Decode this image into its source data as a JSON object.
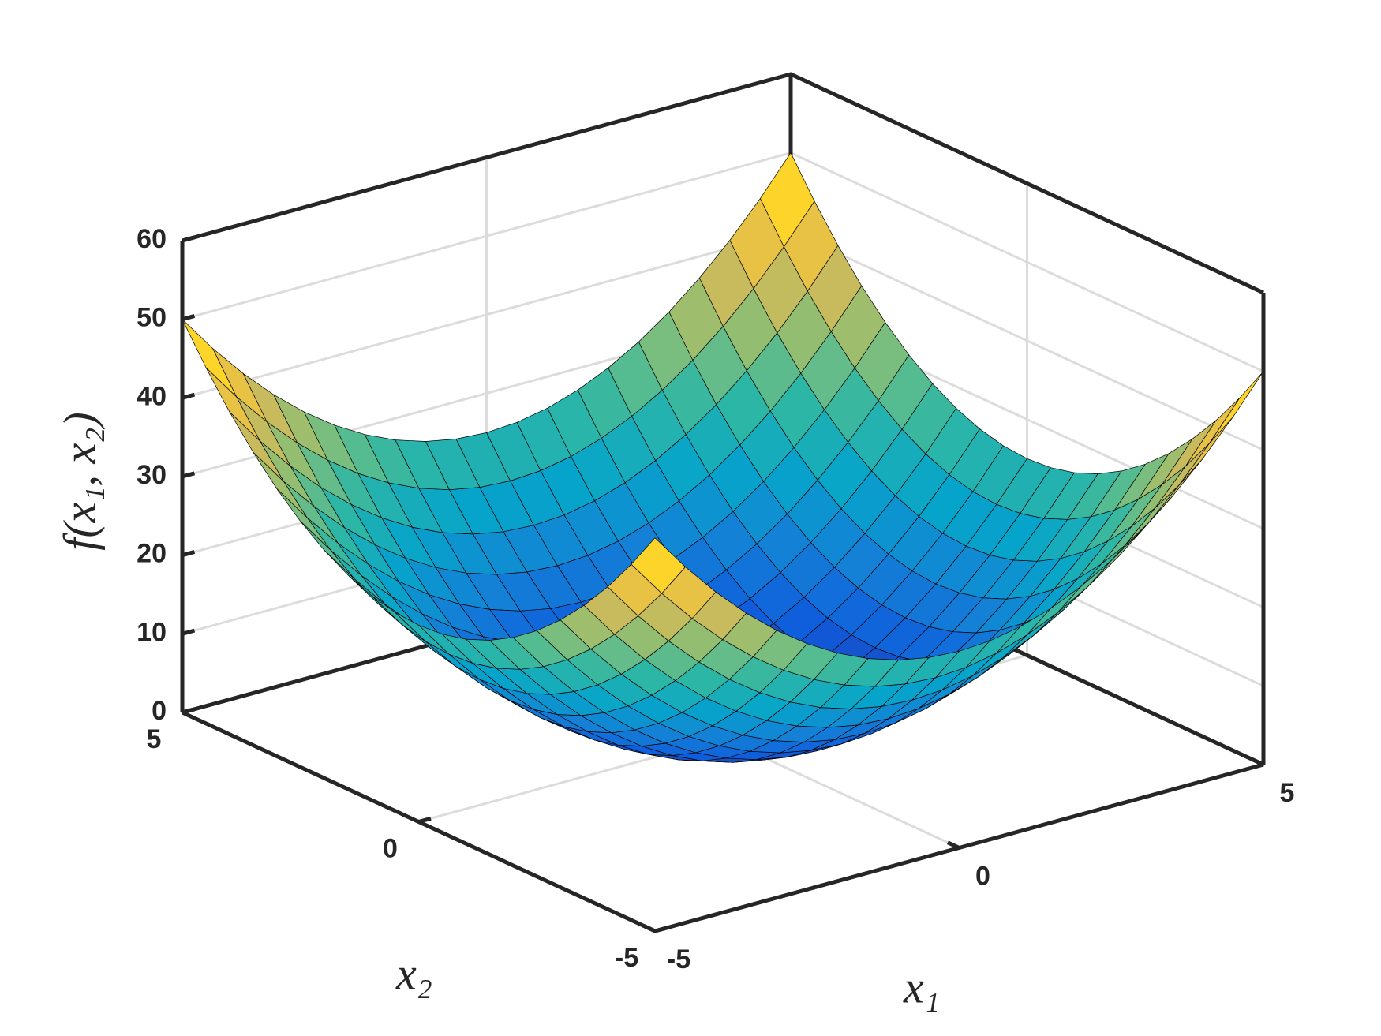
{
  "chart_data": {
    "type": "surface",
    "xlabel": "x₁",
    "ylabel": "x₂",
    "zlabel": "f(x₁, x₂)",
    "x": [
      -5,
      -4.5,
      -4,
      -3.5,
      -3,
      -2.5,
      -2,
      -1.5,
      -1,
      -0.5,
      0,
      0.5,
      1,
      1.5,
      2,
      2.5,
      3,
      3.5,
      4,
      4.5,
      5
    ],
    "y": [
      -5,
      -4.5,
      -4,
      -3.5,
      -3,
      -2.5,
      -2,
      -1.5,
      -1,
      -0.5,
      0,
      0.5,
      1,
      1.5,
      2,
      2.5,
      3,
      3.5,
      4,
      4.5,
      5
    ],
    "z": [
      [
        50,
        45.25,
        41,
        37.25,
        34,
        31.25,
        29,
        27.25,
        26,
        25.25,
        25,
        25.25,
        26,
        27.25,
        29,
        31.25,
        34,
        37.25,
        41,
        45.25,
        50
      ],
      [
        45.25,
        40.5,
        36.25,
        32.5,
        29.25,
        26.5,
        24.25,
        22.5,
        21.25,
        20.5,
        20.25,
        20.5,
        21.25,
        22.5,
        24.25,
        26.5,
        29.25,
        32.5,
        36.25,
        40.5,
        45.25
      ],
      [
        41,
        36.25,
        32,
        28.25,
        25,
        22.25,
        20,
        18.25,
        17,
        16.25,
        16,
        16.25,
        17,
        18.25,
        20,
        22.25,
        25,
        28.25,
        32,
        36.25,
        41
      ],
      [
        37.25,
        32.5,
        28.25,
        24.5,
        21.25,
        18.5,
        16.25,
        14.5,
        13.25,
        12.5,
        12.25,
        12.5,
        13.25,
        14.5,
        16.25,
        18.5,
        21.25,
        24.5,
        28.25,
        32.5,
        37.25
      ],
      [
        34,
        29.25,
        25,
        21.25,
        18,
        15.25,
        13,
        11.25,
        10,
        9.25,
        9,
        9.25,
        10,
        11.25,
        13,
        15.25,
        18,
        21.25,
        25,
        29.25,
        34
      ],
      [
        31.25,
        26.5,
        22.25,
        18.5,
        15.25,
        12.5,
        10.25,
        8.5,
        7.25,
        6.5,
        6.25,
        6.5,
        7.25,
        8.5,
        10.25,
        12.5,
        15.25,
        18.5,
        22.25,
        26.5,
        31.25
      ],
      [
        29,
        24.25,
        20,
        16.25,
        13,
        10.25,
        8,
        6.25,
        5,
        4.25,
        4,
        4.25,
        5,
        6.25,
        8,
        10.25,
        13,
        16.25,
        20,
        24.25,
        29
      ],
      [
        27.25,
        22.5,
        18.25,
        14.5,
        11.25,
        8.5,
        6.25,
        4.5,
        3.25,
        2.5,
        2.25,
        2.5,
        3.25,
        4.5,
        6.25,
        8.5,
        11.25,
        14.5,
        18.25,
        22.5,
        27.25
      ],
      [
        26,
        21.25,
        17,
        13.25,
        10,
        7.25,
        5,
        3.25,
        2,
        1.25,
        1,
        1.25,
        2,
        3.25,
        5,
        7.25,
        10,
        13.25,
        17,
        21.25,
        26
      ],
      [
        25.25,
        20.5,
        16.25,
        12.5,
        9.25,
        6.5,
        4.25,
        2.5,
        1.25,
        0.5,
        0.25,
        0.5,
        1.25,
        2.5,
        4.25,
        6.5,
        9.25,
        12.5,
        16.25,
        20.5,
        25.25
      ],
      [
        25,
        20.25,
        16,
        12.25,
        9,
        6.25,
        4,
        2.25,
        1,
        0.25,
        0,
        0.25,
        1,
        2.25,
        4,
        6.25,
        9,
        12.25,
        16,
        20.25,
        25
      ],
      [
        25.25,
        20.5,
        16.25,
        12.5,
        9.25,
        6.5,
        4.25,
        2.5,
        1.25,
        0.5,
        0.25,
        0.5,
        1.25,
        2.5,
        4.25,
        6.5,
        9.25,
        12.5,
        16.25,
        20.5,
        25.25
      ],
      [
        26,
        21.25,
        17,
        13.25,
        10,
        7.25,
        5,
        3.25,
        2,
        1.25,
        1,
        1.25,
        2,
        3.25,
        5,
        7.25,
        10,
        13.25,
        17,
        21.25,
        26
      ],
      [
        27.25,
        22.5,
        18.25,
        14.5,
        11.25,
        8.5,
        6.25,
        4.5,
        3.25,
        2.5,
        2.25,
        2.5,
        3.25,
        4.5,
        6.25,
        8.5,
        11.25,
        14.5,
        18.25,
        22.5,
        27.25
      ],
      [
        29,
        24.25,
        20,
        16.25,
        13,
        10.25,
        8,
        6.25,
        5,
        4.25,
        4,
        4.25,
        5,
        6.25,
        8,
        10.25,
        13,
        16.25,
        20,
        24.25,
        29
      ],
      [
        31.25,
        26.5,
        22.25,
        18.5,
        15.25,
        12.5,
        10.25,
        8.5,
        7.25,
        6.5,
        6.25,
        6.5,
        7.25,
        8.5,
        10.25,
        12.5,
        15.25,
        18.5,
        22.25,
        26.5,
        31.25
      ],
      [
        34,
        29.25,
        25,
        21.25,
        18,
        15.25,
        13,
        11.25,
        10,
        9.25,
        9,
        9.25,
        10,
        11.25,
        13,
        15.25,
        18,
        21.25,
        25,
        29.25,
        34
      ],
      [
        37.25,
        32.5,
        28.25,
        24.5,
        21.25,
        18.5,
        16.25,
        14.5,
        13.25,
        12.5,
        12.25,
        12.5,
        13.25,
        14.5,
        16.25,
        18.5,
        21.25,
        24.5,
        28.25,
        32.5,
        37.25
      ],
      [
        41,
        36.25,
        32,
        28.25,
        25,
        22.25,
        20,
        18.25,
        17,
        16.25,
        16,
        16.25,
        17,
        18.25,
        20,
        22.25,
        25,
        28.25,
        32,
        36.25,
        41
      ],
      [
        45.25,
        40.5,
        36.25,
        32.5,
        29.25,
        26.5,
        24.25,
        22.5,
        21.25,
        20.5,
        20.25,
        20.5,
        21.25,
        22.5,
        24.25,
        26.5,
        29.25,
        32.5,
        36.25,
        40.5,
        45.25
      ],
      [
        50,
        45.25,
        41,
        37.25,
        34,
        31.25,
        29,
        27.25,
        26,
        25.25,
        25,
        25.25,
        26,
        27.25,
        29,
        31.25,
        34,
        37.25,
        41,
        45.25,
        50
      ]
    ],
    "xlim": [
      -5,
      5
    ],
    "ylim": [
      -5,
      5
    ],
    "zlim": [
      0,
      60
    ],
    "xticks": [
      -5,
      0,
      5
    ],
    "yticks": [
      -5,
      0,
      5
    ],
    "zticks": [
      0,
      10,
      20,
      30,
      40,
      50,
      60
    ],
    "grid": true,
    "colormap": [
      "#352a87",
      "#0f5cdd",
      "#1481d6",
      "#06a4ca",
      "#2eb7a4",
      "#87bf77",
      "#d1bb59",
      "#fec832",
      "#f9fb0e"
    ],
    "edge_color": "#000000"
  }
}
